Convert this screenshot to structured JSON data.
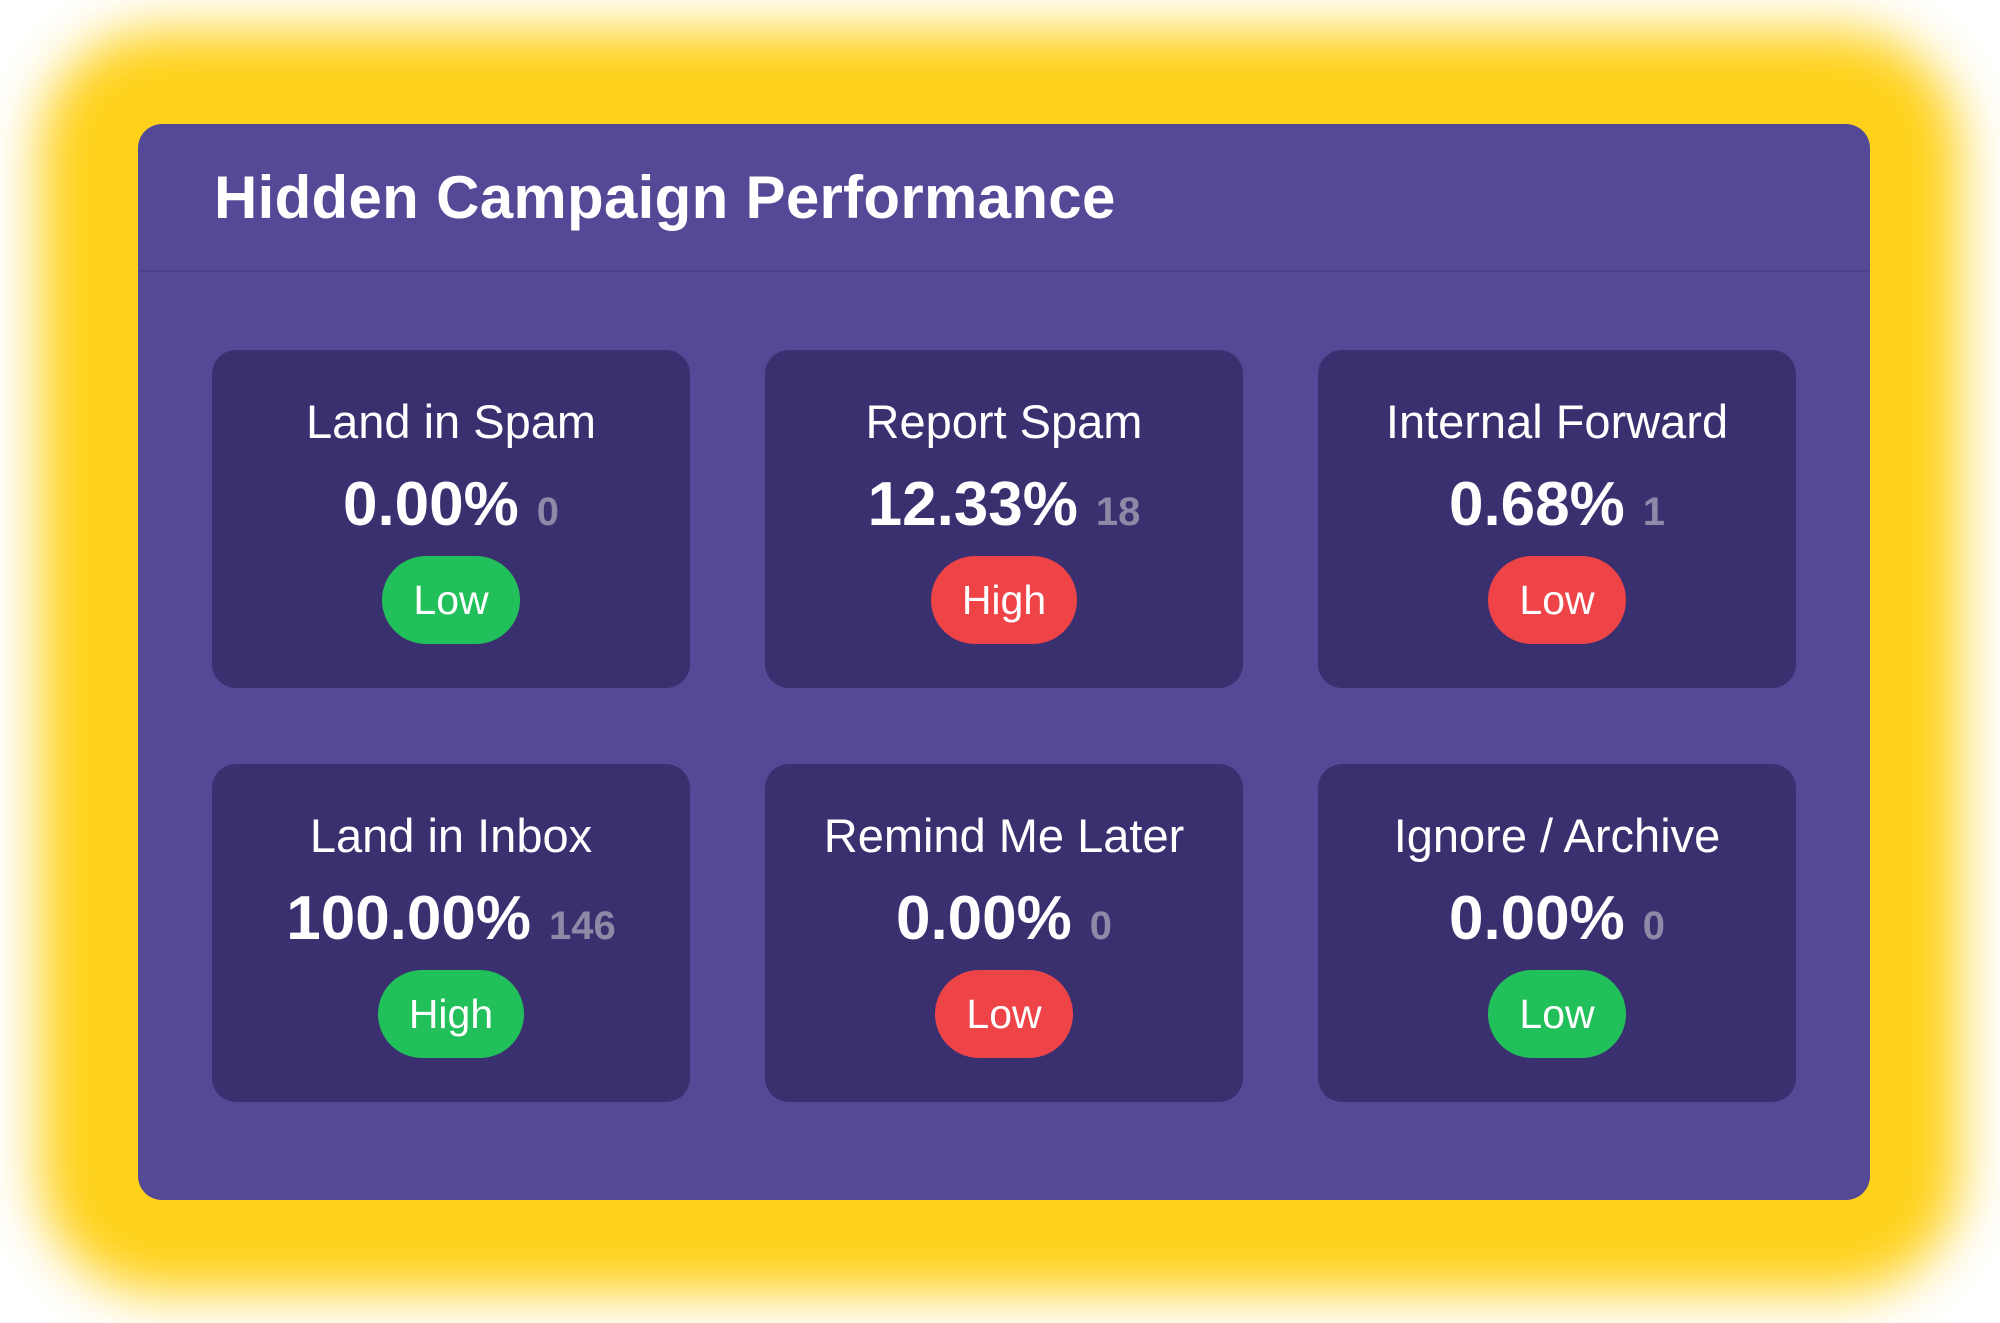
{
  "header": {
    "title": "Hidden Campaign Performance"
  },
  "colors": {
    "outer_glow": "#ffd11a",
    "panel": "#544996",
    "card": "#3a3070",
    "badge_green": "#22c05a",
    "badge_red": "#ee4347"
  },
  "cards": [
    {
      "label": "Land in Spam",
      "value": "0.00%",
      "count": "0",
      "badge": "Low",
      "badge_color": "green"
    },
    {
      "label": "Report Spam",
      "value": "12.33%",
      "count": "18",
      "badge": "High",
      "badge_color": "red"
    },
    {
      "label": "Internal Forward",
      "value": "0.68%",
      "count": "1",
      "badge": "Low",
      "badge_color": "red"
    },
    {
      "label": "Land in Inbox",
      "value": "100.00%",
      "count": "146",
      "badge": "High",
      "badge_color": "green"
    },
    {
      "label": "Remind Me Later",
      "value": "0.00%",
      "count": "0",
      "badge": "Low",
      "badge_color": "red"
    },
    {
      "label": "Ignore / Archive",
      "value": "0.00%",
      "count": "0",
      "badge": "Low",
      "badge_color": "green"
    }
  ]
}
